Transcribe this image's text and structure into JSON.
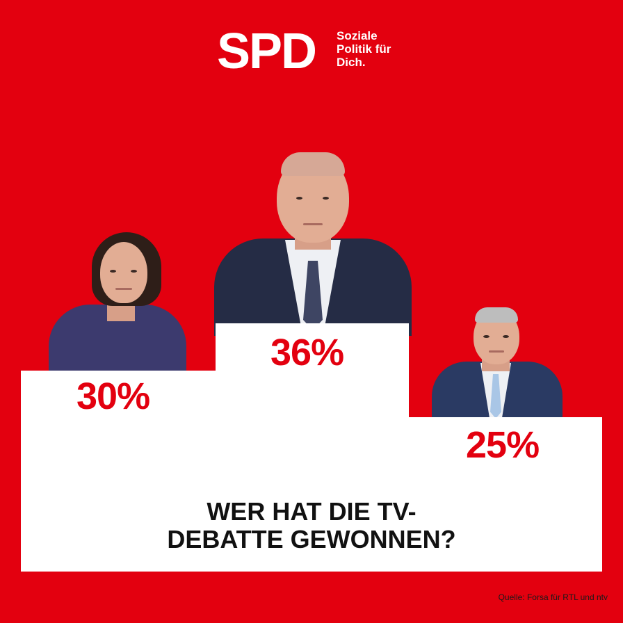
{
  "logo": {
    "mark": "SPD",
    "claim_line1": "Soziale",
    "claim_line2": "Politik für",
    "claim_line3": "Dich."
  },
  "podium": {
    "left_value": "30%",
    "center_value": "36%",
    "right_value": "25%"
  },
  "question": {
    "line1": "WER HAT DIE TV-",
    "line2": "DEBATTE GEWONNEN?"
  },
  "source": "Quelle: Forsa für RTL und ntv",
  "colors": {
    "brand_red": "#e3000f",
    "podium_white": "#ffffff",
    "text_dark": "#111111"
  }
}
